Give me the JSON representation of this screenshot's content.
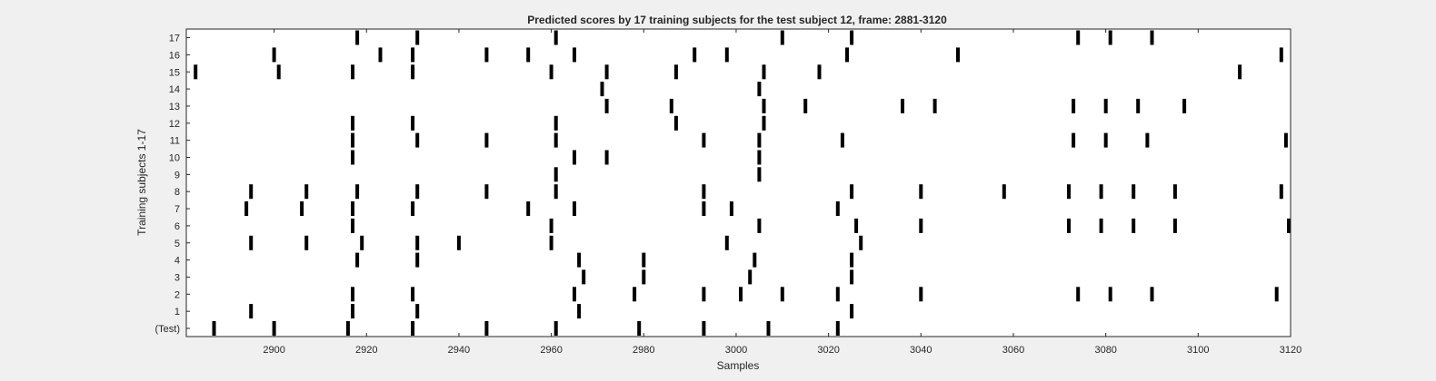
{
  "chart_data": {
    "type": "raster",
    "title": "Predicted scores by 17 training subjects for the test subject 12, frame: 2881-3120",
    "xlabel": "Samples",
    "ylabel": "Training subjects 1-17",
    "xlim": [
      2881,
      3120
    ],
    "x_ticks": [
      2900,
      2920,
      2940,
      2960,
      2980,
      3000,
      3020,
      3040,
      3060,
      3080,
      3100,
      3120
    ],
    "y_tick_labels": [
      "(Test)",
      "1",
      "2",
      "3",
      "4",
      "5",
      "6",
      "7",
      "8",
      "9",
      "10",
      "11",
      "12",
      "13",
      "14",
      "15",
      "16",
      "17"
    ],
    "grid": false,
    "colors": {
      "background": "#f0f0f0",
      "axes": "#ffffff",
      "marks": "#000000",
      "text": "#262626"
    },
    "rows": [
      {
        "name": "(Test)",
        "events": [
          2887,
          2900,
          2916,
          2930,
          2946,
          2961,
          2979,
          2993,
          3007,
          3022
        ]
      },
      {
        "name": "1",
        "events": [
          2895,
          2917,
          2931,
          2966,
          3025
        ]
      },
      {
        "name": "2",
        "events": [
          2917,
          2930,
          2965,
          2978,
          2993,
          3001,
          3010,
          3022,
          3040,
          3074,
          3081,
          3090,
          3117
        ]
      },
      {
        "name": "3",
        "events": [
          2967,
          2980,
          3003,
          3025
        ]
      },
      {
        "name": "4",
        "events": [
          2918,
          2931,
          2966,
          2980,
          3004,
          3025
        ]
      },
      {
        "name": "5",
        "events": [
          2895,
          2907,
          2919,
          2931,
          2940,
          2960,
          2998,
          3027
        ]
      },
      {
        "name": "6",
        "events": [
          2917,
          2960,
          3005,
          3026,
          3040,
          3072,
          3079,
          3086,
          3095,
          3120
        ]
      },
      {
        "name": "7",
        "events": [
          2894,
          2906,
          2917,
          2930,
          2955,
          2965,
          2993,
          2999,
          3022
        ]
      },
      {
        "name": "8",
        "events": [
          2895,
          2907,
          2918,
          2931,
          2946,
          2961,
          2993,
          3025,
          3040,
          3058,
          3072,
          3079,
          3086,
          3095,
          3118
        ]
      },
      {
        "name": "9",
        "events": [
          2961,
          3005
        ]
      },
      {
        "name": "10",
        "events": [
          2917,
          2965,
          2972,
          3005
        ]
      },
      {
        "name": "11",
        "events": [
          2917,
          2931,
          2946,
          2961,
          2993,
          3005,
          3023,
          3073,
          3080,
          3089,
          3119
        ]
      },
      {
        "name": "12",
        "events": [
          2917,
          2930,
          2961,
          2987,
          3006
        ]
      },
      {
        "name": "13",
        "events": [
          2972,
          2986,
          3006,
          3015,
          3036,
          3043,
          3073,
          3080,
          3087,
          3097
        ]
      },
      {
        "name": "14",
        "events": [
          2971,
          3005
        ]
      },
      {
        "name": "15",
        "events": [
          2883,
          2901,
          2917,
          2930,
          2960,
          2972,
          2987,
          3006,
          3018,
          3109
        ]
      },
      {
        "name": "16",
        "events": [
          2900,
          2923,
          2930,
          2946,
          2955,
          2965,
          2991,
          2998,
          3024,
          3048,
          3118
        ]
      },
      {
        "name": "17",
        "events": [
          2918,
          2931,
          2961,
          3010,
          3025,
          3074,
          3081,
          3090
        ]
      }
    ]
  }
}
